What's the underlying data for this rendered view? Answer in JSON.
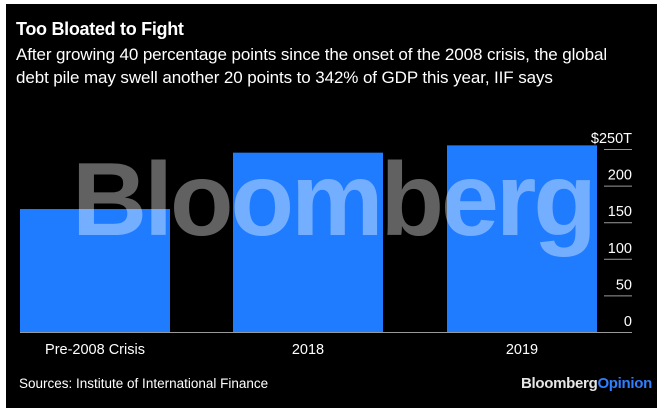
{
  "header": {
    "title": "Too Bloated to Fight",
    "subtitle": "After growing 40 percentage points since the onset of the 2008 crisis, the global debt pile may swell another 20 points to 342% of GDP this year, IIF says"
  },
  "footer": {
    "source": "Sources: Institute of International Finance",
    "brand_primary": "Bloomberg",
    "brand_secondary": "Opinion"
  },
  "watermark": "Bloomberg",
  "colors": {
    "background": "#000000",
    "bar": "#1f7cff",
    "text": "#ffffff",
    "gridline": "#9a9a9a",
    "brand_accent": "#2f7fff"
  },
  "chart_data": {
    "type": "bar",
    "title": "Too Bloated to Fight",
    "subtitle": "After growing 40 percentage points since the onset of the 2008 crisis, the global debt pile may swell another 20 points to 342% of GDP this year, IIF says",
    "categories": [
      "Pre-2008 Crisis",
      "2018",
      "2019"
    ],
    "values": [
      168,
      245,
      255
    ],
    "unit": "$ trillions",
    "xlabel": "",
    "ylabel": "",
    "ylim": [
      0,
      250
    ],
    "yticks": [
      0,
      50,
      100,
      150,
      200,
      250
    ],
    "ytick_labels": [
      "0",
      "50",
      "100",
      "150",
      "200",
      "$250T"
    ],
    "y_axis_position": "right",
    "grid": false,
    "legend": "none",
    "source": "Sources: Institute of International Finance"
  }
}
